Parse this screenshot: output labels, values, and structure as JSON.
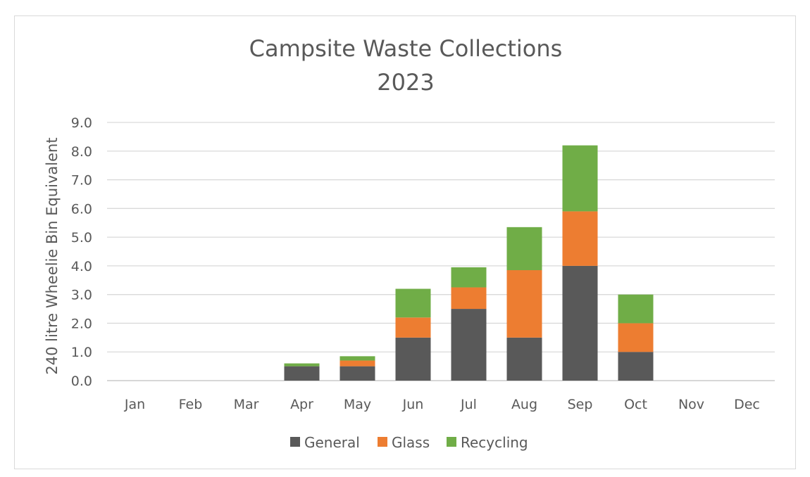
{
  "chart_data": {
    "type": "bar",
    "stacked": true,
    "title": [
      "Campsite Waste Collections",
      "2023"
    ],
    "xlabel": "",
    "ylabel": "240 litre Wheelie Bin Equivalent",
    "ylim": [
      0,
      9
    ],
    "ytick_step": 1,
    "ytick_labels": [
      "0.0",
      "1.0",
      "2.0",
      "3.0",
      "4.0",
      "5.0",
      "6.0",
      "7.0",
      "8.0",
      "9.0"
    ],
    "grid": true,
    "legend_position": "bottom",
    "categories": [
      "Jan",
      "Feb",
      "Mar",
      "Apr",
      "May",
      "Jun",
      "Jul",
      "Aug",
      "Sep",
      "Oct",
      "Nov",
      "Dec"
    ],
    "series": [
      {
        "name": "General",
        "color": "#595959",
        "values": [
          0,
          0,
          0,
          0.5,
          0.5,
          1.5,
          2.5,
          1.5,
          4.0,
          1.0,
          0,
          0
        ]
      },
      {
        "name": "Glass",
        "color": "#ed7d31",
        "values": [
          0,
          0,
          0,
          0,
          0.2,
          0.7,
          0.75,
          2.35,
          1.9,
          1.0,
          0,
          0
        ]
      },
      {
        "name": "Recycling",
        "color": "#70ad47",
        "values": [
          0,
          0,
          0,
          0.1,
          0.15,
          1.0,
          0.7,
          1.5,
          2.3,
          1.0,
          0,
          0
        ]
      }
    ]
  }
}
